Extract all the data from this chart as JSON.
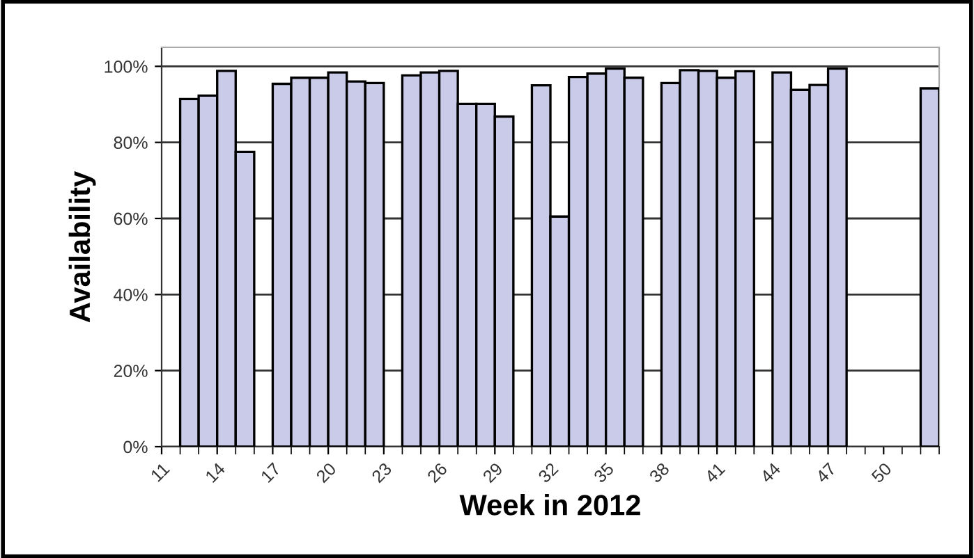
{
  "chart_data": {
    "type": "bar",
    "xlabel": "Week in 2012",
    "ylabel": "Availability",
    "categories": [
      "11",
      null,
      null,
      "14",
      null,
      null,
      "17",
      null,
      null,
      "20",
      null,
      null,
      "23",
      null,
      null,
      "26",
      null,
      null,
      "29",
      null,
      null,
      "32",
      null,
      null,
      "35",
      null,
      null,
      "38",
      null,
      null,
      "41",
      null,
      null,
      "44",
      null,
      null,
      "47",
      null,
      null,
      "50",
      null,
      null
    ],
    "values": [
      null,
      91.4,
      92.3,
      98.8,
      77.5,
      null,
      95.4,
      97.0,
      97.0,
      98.4,
      96.0,
      95.6,
      null,
      97.6,
      98.4,
      98.8,
      90.1,
      90.1,
      86.8,
      null,
      95.0,
      60.5,
      97.2,
      98.1,
      99.4,
      97.0,
      null,
      95.6,
      99.0,
      98.8,
      97.0,
      98.7,
      null,
      98.4,
      93.8,
      95.1,
      99.4,
      null,
      null,
      null,
      null,
      94.2
    ],
    "color": "#c9cbe8",
    "ylim": [
      0,
      105
    ],
    "yticks": [
      {
        "value": 0,
        "label": "0%"
      },
      {
        "value": 20,
        "label": "20%"
      },
      {
        "value": 40,
        "label": "40%"
      },
      {
        "value": 60,
        "label": "60%"
      },
      {
        "value": 80,
        "label": "80%"
      },
      {
        "value": 100,
        "label": "100%"
      }
    ],
    "grid": "y"
  }
}
